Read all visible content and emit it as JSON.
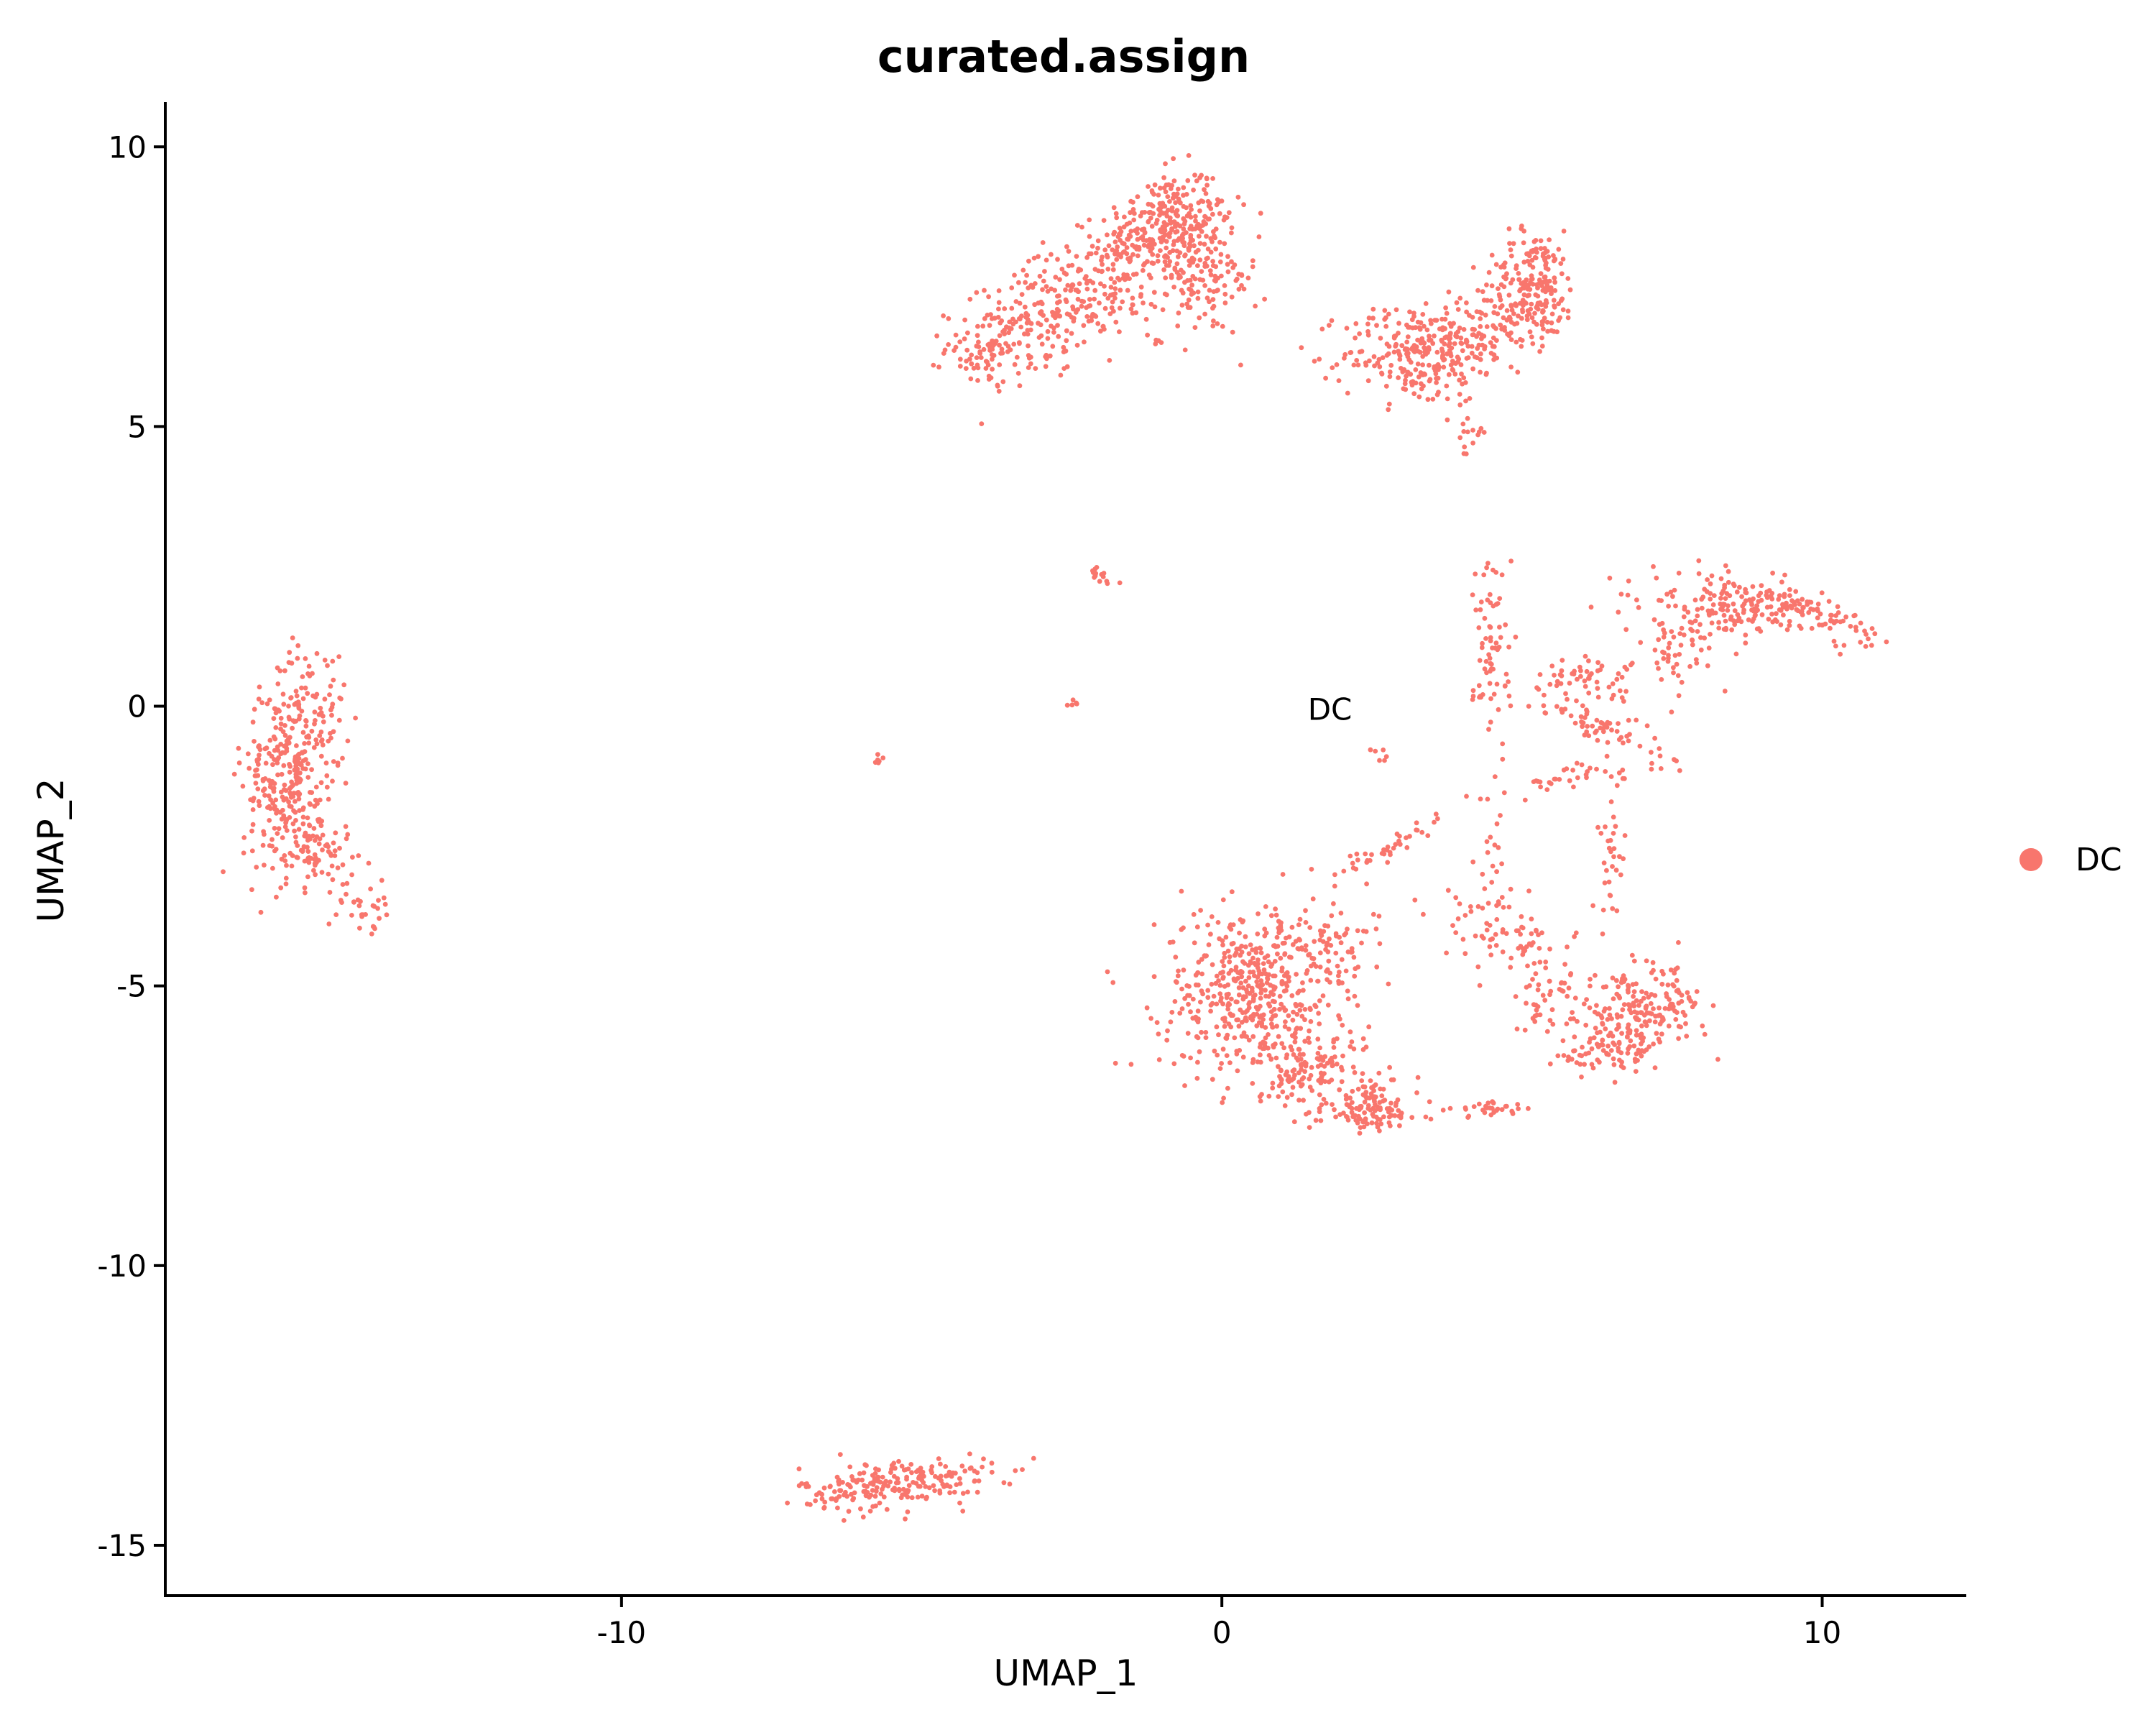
{
  "chart_data": {
    "type": "scatter",
    "title": "curated.assign",
    "xlabel": "UMAP_1",
    "ylabel": "UMAP_2",
    "xlim": [
      -17.6,
      12.4
    ],
    "ylim": [
      -15.9,
      10.8
    ],
    "xticks": [
      -10,
      0,
      10
    ],
    "yticks": [
      10,
      5,
      0,
      -5,
      -10,
      -15
    ],
    "xtick_labels": [
      "-10",
      "0",
      "10"
    ],
    "ytick_labels": [
      "10",
      "5",
      "0",
      "-5",
      "-10",
      "-15"
    ],
    "grid": false,
    "legend_position": "right",
    "series": [
      {
        "name": "DC",
        "color": "#F8766D",
        "clusters": [
          {
            "cx": -0.9,
            "cy": 8.6,
            "sx": 0.55,
            "sy": 0.45,
            "rot": 20,
            "n": 280
          },
          {
            "cx": -2.4,
            "cy": 7.3,
            "sx": 0.9,
            "sy": 0.45,
            "rot": 25,
            "n": 300
          },
          {
            "cx": -3.8,
            "cy": 6.4,
            "sx": 0.4,
            "sy": 0.35,
            "rot": 0,
            "n": 90
          },
          {
            "cx": -0.3,
            "cy": 7.6,
            "sx": 0.45,
            "sy": 0.5,
            "rot": 0,
            "n": 120
          },
          {
            "cx": 3.2,
            "cy": 6.3,
            "sx": 0.6,
            "sy": 0.45,
            "rot": 0,
            "n": 220
          },
          {
            "cx": 5.2,
            "cy": 7.5,
            "sx": 0.35,
            "sy": 0.5,
            "rot": 0,
            "n": 200
          },
          {
            "cx": 4.2,
            "cy": 6.7,
            "sx": 0.55,
            "sy": 0.35,
            "rot": 20,
            "n": 120
          },
          {
            "cx": 4.1,
            "cy": 4.9,
            "sx": 0.12,
            "sy": 0.25,
            "rot": 0,
            "n": 15
          },
          {
            "cx": -15.6,
            "cy": -1.3,
            "sx": 0.35,
            "sy": 0.9,
            "rot": 0,
            "n": 260
          },
          {
            "cx": -15.2,
            "cy": -0.2,
            "sx": 0.3,
            "sy": 0.6,
            "rot": 0,
            "n": 90
          },
          {
            "cx": -15.1,
            "cy": -2.5,
            "sx": 0.35,
            "sy": 0.35,
            "rot": 0,
            "n": 80
          },
          {
            "cx": -14.3,
            "cy": -3.6,
            "sx": 0.25,
            "sy": 0.2,
            "rot": -30,
            "n": 30
          },
          {
            "cx": -5.4,
            "cy": -13.9,
            "sx": 0.8,
            "sy": 0.22,
            "rot": 5,
            "n": 220
          },
          {
            "cx": 0.5,
            "cy": -5.1,
            "sx": 0.75,
            "sy": 0.75,
            "rot": 0,
            "n": 480
          },
          {
            "cx": 1.5,
            "cy": -6.5,
            "sx": 0.6,
            "sy": 0.4,
            "rot": -20,
            "n": 140
          },
          {
            "cx": 2.5,
            "cy": -7.2,
            "sx": 0.4,
            "sy": 0.25,
            "rot": 0,
            "n": 110
          },
          {
            "cx": 1.8,
            "cy": -4.3,
            "sx": 0.35,
            "sy": 0.3,
            "rot": 0,
            "n": 60
          },
          {
            "cx": 7.0,
            "cy": -5.5,
            "sx": 0.55,
            "sy": 0.35,
            "rot": 20,
            "n": 200
          },
          {
            "cx": 6.4,
            "cy": -6.2,
            "sx": 0.4,
            "sy": 0.2,
            "rot": 0,
            "n": 60
          },
          {
            "cx": 8.5,
            "cy": 1.8,
            "sx": 0.7,
            "sy": 0.25,
            "rot": -5,
            "n": 170
          },
          {
            "cx": 10.0,
            "cy": 1.6,
            "sx": 0.5,
            "sy": 0.15,
            "rot": -20,
            "n": 70
          },
          {
            "cx": 7.6,
            "cy": 1.0,
            "sx": 0.3,
            "sy": 0.35,
            "rot": 0,
            "n": 50
          },
          {
            "cx": 6.0,
            "cy": 0.5,
            "sx": 0.5,
            "sy": 0.2,
            "rot": 0,
            "n": 60
          },
          {
            "cx": 6.2,
            "cy": -0.3,
            "sx": 0.6,
            "sy": 0.15,
            "rot": -20,
            "n": 60
          },
          {
            "cx": 4.5,
            "cy": 1.0,
            "sx": 0.15,
            "sy": 1.0,
            "rot": 0,
            "n": 70
          },
          {
            "cx": 6.0,
            "cy": -1.3,
            "sx": 0.8,
            "sy": 0.12,
            "rot": 10,
            "n": 40
          },
          {
            "cx": 2.8,
            "cy": -2.5,
            "sx": 0.5,
            "sy": 0.12,
            "rot": 35,
            "n": 40
          },
          {
            "cx": 4.8,
            "cy": -4.2,
            "sx": 0.6,
            "sy": 0.35,
            "rot": -25,
            "n": 80
          },
          {
            "cx": 5.5,
            "cy": -5.3,
            "sx": 0.35,
            "sy": 0.3,
            "rot": 0,
            "n": 40
          },
          {
            "cx": 4.5,
            "cy": -7.2,
            "sx": 0.4,
            "sy": 0.06,
            "rot": 5,
            "n": 30
          },
          {
            "cx": 6.5,
            "cy": -2.7,
            "sx": 0.12,
            "sy": 0.7,
            "rot": 0,
            "n": 30
          },
          {
            "cx": 4.5,
            "cy": -3.0,
            "sx": 0.15,
            "sy": 0.5,
            "rot": 0,
            "n": 20
          },
          {
            "cx": -2.0,
            "cy": 2.3,
            "sx": 0.15,
            "sy": 0.07,
            "rot": -35,
            "n": 15
          },
          {
            "cx": -2.5,
            "cy": 0.05,
            "sx": 0.06,
            "sy": 0.04,
            "rot": 0,
            "n": 5
          },
          {
            "cx": -5.7,
            "cy": -1.0,
            "sx": 0.05,
            "sy": 0.05,
            "rot": 0,
            "n": 6
          },
          {
            "cx": 2.6,
            "cy": -0.85,
            "sx": 0.1,
            "sy": 0.05,
            "rot": -40,
            "n": 6
          }
        ]
      }
    ],
    "annotations": [
      {
        "text": "DC",
        "x": 1.8,
        "y": -0.05
      }
    ]
  }
}
